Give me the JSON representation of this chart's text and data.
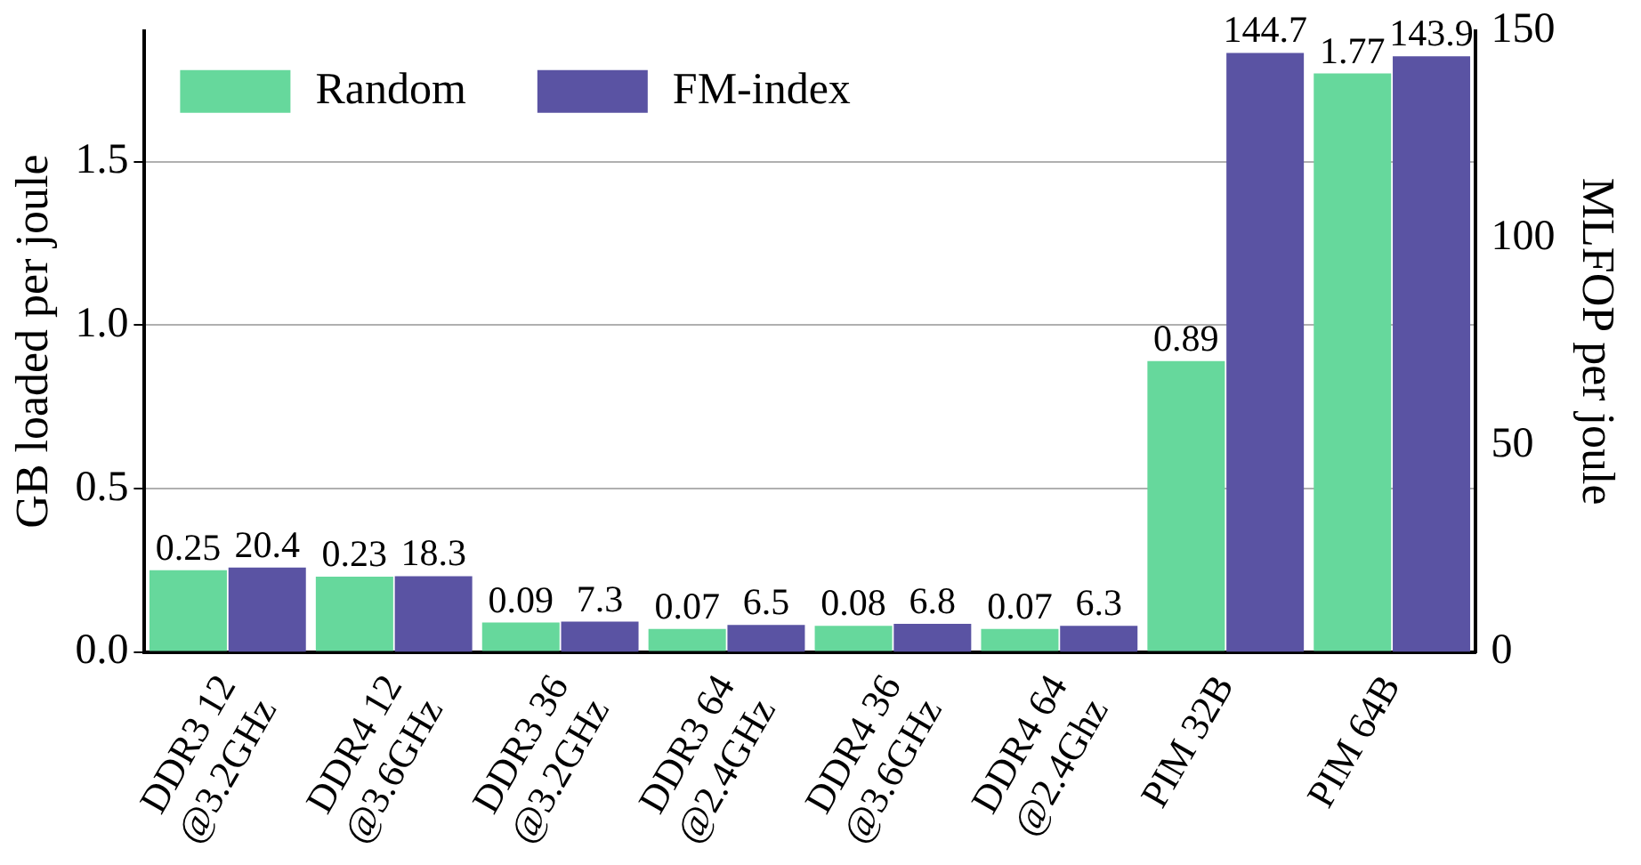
{
  "chart_data": {
    "type": "bar",
    "ylabel": "GB loaded per joule",
    "y2label": "MLFOP per joule",
    "categories": [
      "DDR3 12\n@3.2GHz",
      "DDR4 12\n@3.6GHz",
      "DDR3 36\n@3.2GHz",
      "DDR3 64\n@2.4GHz",
      "DDR4 36\n@3.6GHz",
      "DDR4 64\n@2.4Ghz",
      "PIM 32B",
      "PIM 64B"
    ],
    "series": [
      {
        "name": "Random",
        "color": "#66d89c",
        "values": [
          0.25,
          0.23,
          0.09,
          0.07,
          0.08,
          0.07,
          0.89,
          1.77
        ]
      },
      {
        "name": "FM-index",
        "color": "#5a53a3",
        "axis": "y2",
        "values": [
          20.4,
          18.3,
          7.3,
          6.5,
          6.8,
          6.3,
          144.7,
          143.9
        ]
      }
    ],
    "ylim": [
      0,
      1.9
    ],
    "yticks": [
      {
        "value": 0,
        "label": "0.0"
      },
      {
        "value": 0.5,
        "label": "0.5"
      },
      {
        "value": 1,
        "label": "1.0"
      },
      {
        "value": 1.5,
        "label": "1.5"
      }
    ],
    "y2lim": [
      0,
      150
    ],
    "y2ticks": [
      0,
      50,
      100,
      150
    ],
    "grid": "y",
    "legend": "top left",
    "data_labels": true
  }
}
